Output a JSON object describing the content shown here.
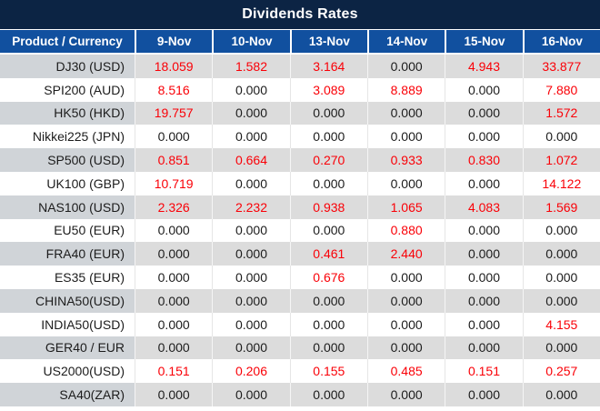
{
  "title": "Dividends Rates",
  "colors": {
    "title_bar_bg": "#0c2444",
    "header_bg": "#11509f",
    "header_text": "#ffffff",
    "row_alt_product_bg": "#d0d4d8",
    "row_alt_value_bg": "#dcdcdc",
    "row_white_bg": "#ffffff",
    "value_nonzero": "#fa0007",
    "value_zero": "#1c1c1c"
  },
  "chart_data": {
    "type": "table",
    "title": "Dividends Rates",
    "columns": [
      "Product / Currency",
      "9-Nov",
      "10-Nov",
      "13-Nov",
      "14-Nov",
      "15-Nov",
      "16-Nov"
    ],
    "rows": [
      {
        "product": "DJ30 (USD)",
        "values": [
          "18.059",
          "1.582",
          "3.164",
          "0.000",
          "4.943",
          "33.877"
        ]
      },
      {
        "product": "SPI200 (AUD)",
        "values": [
          "8.516",
          "0.000",
          "3.089",
          "8.889",
          "0.000",
          "7.880"
        ]
      },
      {
        "product": "HK50 (HKD)",
        "values": [
          "19.757",
          "0.000",
          "0.000",
          "0.000",
          "0.000",
          "1.572"
        ]
      },
      {
        "product": "Nikkei225 (JPN)",
        "values": [
          "0.000",
          "0.000",
          "0.000",
          "0.000",
          "0.000",
          "0.000"
        ]
      },
      {
        "product": "SP500 (USD)",
        "values": [
          "0.851",
          "0.664",
          "0.270",
          "0.933",
          "0.830",
          "1.072"
        ]
      },
      {
        "product": "UK100 (GBP)",
        "values": [
          "10.719",
          "0.000",
          "0.000",
          "0.000",
          "0.000",
          "14.122"
        ]
      },
      {
        "product": "NAS100 (USD)",
        "values": [
          "2.326",
          "2.232",
          "0.938",
          "1.065",
          "4.083",
          "1.569"
        ]
      },
      {
        "product": "EU50 (EUR)",
        "values": [
          "0.000",
          "0.000",
          "0.000",
          "0.880",
          "0.000",
          "0.000"
        ]
      },
      {
        "product": "FRA40 (EUR)",
        "values": [
          "0.000",
          "0.000",
          "0.461",
          "2.440",
          "0.000",
          "0.000"
        ]
      },
      {
        "product": "ES35 (EUR)",
        "values": [
          "0.000",
          "0.000",
          "0.676",
          "0.000",
          "0.000",
          "0.000"
        ]
      },
      {
        "product": "CHINA50(USD)",
        "values": [
          "0.000",
          "0.000",
          "0.000",
          "0.000",
          "0.000",
          "0.000"
        ]
      },
      {
        "product": "INDIA50(USD)",
        "values": [
          "0.000",
          "0.000",
          "0.000",
          "0.000",
          "0.000",
          "4.155"
        ]
      },
      {
        "product": "GER40 / EUR",
        "values": [
          "0.000",
          "0.000",
          "0.000",
          "0.000",
          "0.000",
          "0.000"
        ]
      },
      {
        "product": "US2000(USD)",
        "values": [
          "0.151",
          "0.206",
          "0.155",
          "0.485",
          "0.151",
          "0.257"
        ]
      },
      {
        "product": "SA40(ZAR)",
        "values": [
          "0.000",
          "0.000",
          "0.000",
          "0.000",
          "0.000",
          "0.000"
        ]
      }
    ],
    "style_note": "non-zero values rendered in red, zero values in black; alternating gray/white row stripes"
  }
}
